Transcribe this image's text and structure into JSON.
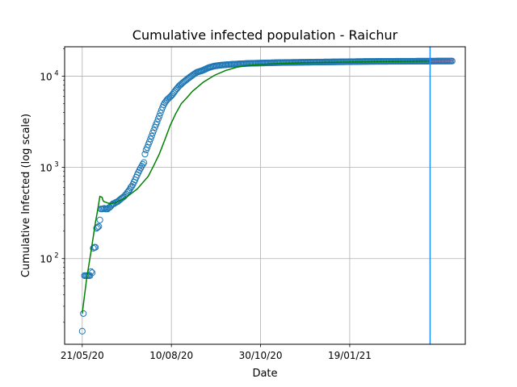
{
  "chart_data": {
    "type": "scatter",
    "title": "Cumulative infected population - Raichur",
    "xlabel": "Date",
    "ylabel": "Cumulative Infected (log scale)",
    "x_ticks": [
      {
        "label": "21/05/20",
        "day": 0
      },
      {
        "label": "10/08/20",
        "day": 81
      },
      {
        "label": "30/10/20",
        "day": 162
      },
      {
        "label": "19/01/21",
        "day": 243
      }
    ],
    "xlim_days": [
      -16,
      348
    ],
    "y_scale": "log",
    "ylim": [
      11.5,
      21000
    ],
    "y_ticks": [
      {
        "label": "10",
        "exp": "2",
        "value": 100
      },
      {
        "label": "10",
        "exp": "3",
        "value": 1000
      },
      {
        "label": "10",
        "exp": "4",
        "value": 10000
      }
    ],
    "grid": true,
    "vertical_line_day": 316,
    "observed_day_start": 0,
    "observed": [
      16,
      25,
      65,
      65,
      65,
      65,
      65,
      65,
      72,
      70,
      130,
      133,
      133,
      215,
      220,
      225,
      265,
      350,
      350,
      352,
      355,
      350,
      350,
      350,
      360,
      365,
      375,
      390,
      400,
      400,
      410,
      415,
      420,
      430,
      440,
      450,
      460,
      470,
      480,
      495,
      510,
      530,
      550,
      570,
      600,
      620,
      650,
      690,
      730,
      780,
      830,
      880,
      930,
      980,
      1030,
      1080,
      1130,
      1400,
      1550,
      1650,
      1780,
      1900,
      2050,
      2200,
      2380,
      2550,
      2750,
      2950,
      3150,
      3400,
      3650,
      3950,
      4250,
      4550,
      4850,
      5100,
      5300,
      5500,
      5650,
      5800,
      5950,
      6100,
      6300,
      6550,
      6800,
      7050,
      7300,
      7550,
      7800,
      8000,
      8200,
      8400,
      8600,
      8800,
      9000,
      9200,
      9400,
      9600,
      9800,
      10000,
      10200,
      10400,
      10600,
      10800,
      11000,
      11100,
      11200,
      11300,
      11400,
      11500,
      11650,
      11800,
      11950,
      12100,
      12250,
      12400,
      12500,
      12600,
      12700,
      12800,
      12900,
      12950,
      13000,
      13050,
      13100,
      13150,
      13200,
      13230,
      13260,
      13290,
      13320,
      13350,
      13380,
      13410,
      13440,
      13470,
      13500,
      13520,
      13540,
      13560,
      13580,
      13600,
      13620,
      13640,
      13660,
      13680,
      13700,
      13720,
      13740,
      13760,
      13780,
      13800,
      13810,
      13820,
      13830,
      13840,
      13850,
      13860,
      13870,
      13880,
      13890,
      13900,
      13910,
      13920,
      13930,
      13940,
      13950,
      13960,
      13970,
      13980,
      13990,
      14000,
      14010,
      14020,
      14030,
      14040,
      14050,
      14060,
      14070,
      14080,
      14090,
      14100,
      14105,
      14110,
      14115,
      14120,
      14125,
      14130,
      14135,
      14140,
      14145,
      14150,
      14155,
      14160,
      14165,
      14170,
      14175,
      14180,
      14185,
      14190,
      14195,
      14200,
      14205,
      14210,
      14215,
      14220,
      14225,
      14230,
      14235,
      14240,
      14245,
      14250,
      14255,
      14260,
      14265,
      14270,
      14275,
      14280,
      14285,
      14290,
      14295,
      14300,
      14305,
      14310,
      14315,
      14320,
      14325,
      14330,
      14335,
      14340,
      14345,
      14350,
      14355,
      14360,
      14365,
      14370,
      14375,
      14380,
      14385,
      14390,
      14395,
      14400,
      14405,
      14410,
      14415,
      14420,
      14425,
      14430,
      14435,
      14440,
      14445,
      14450,
      14455,
      14460,
      14465,
      14470,
      14475,
      14480,
      14485,
      14490,
      14495,
      14500,
      14502,
      14504,
      14506,
      14508,
      14510,
      14512,
      14514,
      14516,
      14518,
      14520,
      14522,
      14524,
      14526,
      14528,
      14530,
      14532,
      14534,
      14536,
      14538,
      14540,
      14542,
      14544,
      14546,
      14548,
      14550,
      14552,
      14554,
      14556,
      14558,
      14560,
      14562,
      14564,
      14566,
      14568,
      14570,
      14572,
      14574,
      14576,
      14578,
      14580,
      14582,
      14584,
      14586,
      14588,
      14590,
      14592,
      14594,
      14596,
      14598,
      14600,
      14602,
      14604,
      14606,
      14608,
      14610,
      14612,
      14614,
      14616,
      14618,
      14620,
      14622,
      14624,
      14626,
      14628,
      14630,
      14632,
      14634,
      14636,
      14638,
      14640,
      14642,
      14644,
      14646,
      14648,
      14650
    ],
    "fit_line": {
      "color": "#008000",
      "points": [
        [
          0,
          25
        ],
        [
          4,
          60
        ],
        [
          8,
          120
        ],
        [
          12,
          250
        ],
        [
          14,
          340
        ],
        [
          16,
          480
        ],
        [
          18,
          470
        ],
        [
          19,
          430
        ],
        [
          20,
          420
        ],
        [
          25,
          400
        ],
        [
          30,
          410
        ],
        [
          40,
          470
        ],
        [
          50,
          580
        ],
        [
          60,
          800
        ],
        [
          65,
          1050
        ],
        [
          70,
          1400
        ],
        [
          75,
          2000
        ],
        [
          80,
          2900
        ],
        [
          85,
          3900
        ],
        [
          90,
          5000
        ],
        [
          95,
          5800
        ],
        [
          100,
          6800
        ],
        [
          110,
          8600
        ],
        [
          120,
          10200
        ],
        [
          130,
          11500
        ],
        [
          140,
          12500
        ],
        [
          150,
          13100
        ],
        [
          170,
          13600
        ],
        [
          200,
          14000
        ],
        [
          250,
          14350
        ],
        [
          300,
          14550
        ],
        [
          316,
          14650
        ]
      ]
    },
    "projection": {
      "color": "#e6337f",
      "points": [
        [
          316,
          14650
        ],
        [
          320,
          14680
        ],
        [
          330,
          14720
        ],
        [
          337,
          14750
        ]
      ]
    },
    "colors": {
      "observed": "#1f77b4",
      "vertical_line": "#1e90ff",
      "grid": "#b0b0b0"
    }
  }
}
